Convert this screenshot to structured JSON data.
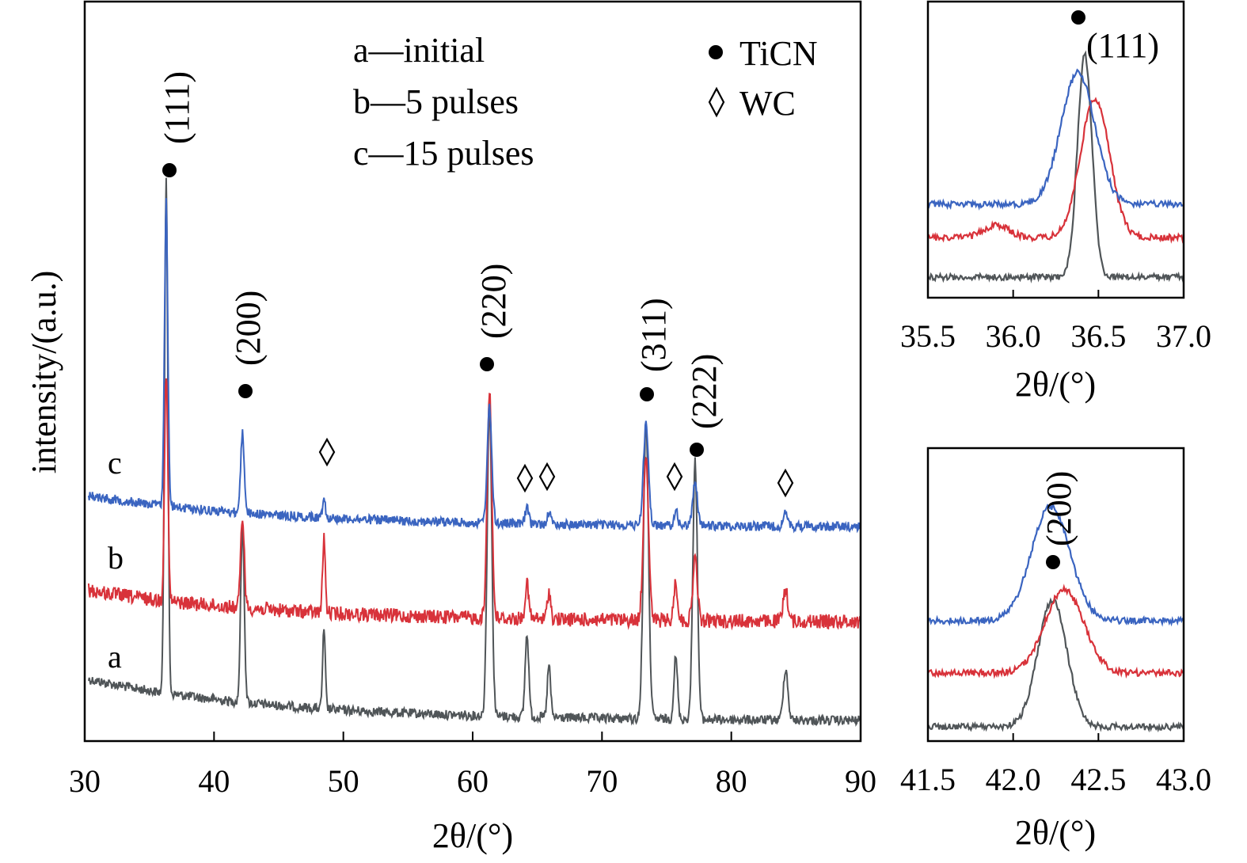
{
  "colors": {
    "a": "#505558",
    "b": "#d8323a",
    "c": "#3a64c0",
    "axis": "#000000"
  },
  "chart_data": [
    {
      "type": "line",
      "title": "",
      "xlabel": "2θ/(°)",
      "ylabel": "intensity/(a.u.)",
      "xlim": [
        30,
        90
      ],
      "xticks": [
        "30",
        "40",
        "50",
        "60",
        "70",
        "80",
        "90"
      ],
      "legend_text": [
        "a—initial",
        "b—5 pulses",
        "c—15 pulses"
      ],
      "marker_legend": [
        {
          "marker": "filled-circle",
          "label": "TiCN"
        },
        {
          "marker": "open-diamond",
          "label": "WC"
        }
      ],
      "series": [
        {
          "name": "a",
          "color_key": "a",
          "peaks": [
            {
              "x": 36.3,
              "h": 1.0
            },
            {
              "x": 42.2,
              "h": 0.34
            },
            {
              "x": 48.5,
              "h": 0.15
            },
            {
              "x": 61.3,
              "h": 0.6
            },
            {
              "x": 64.2,
              "h": 0.16
            },
            {
              "x": 65.9,
              "h": 0.1
            },
            {
              "x": 73.4,
              "h": 0.57
            },
            {
              "x": 75.7,
              "h": 0.12
            },
            {
              "x": 77.2,
              "h": 0.5
            },
            {
              "x": 84.2,
              "h": 0.1
            }
          ]
        },
        {
          "name": "b",
          "color_key": "b",
          "peaks": [
            {
              "x": 36.3,
              "h": 1.0
            },
            {
              "x": 42.2,
              "h": 0.4
            },
            {
              "x": 48.5,
              "h": 0.32
            },
            {
              "x": 61.3,
              "h": 1.0
            },
            {
              "x": 64.2,
              "h": 0.15
            },
            {
              "x": 65.9,
              "h": 0.12
            },
            {
              "x": 73.4,
              "h": 0.73
            },
            {
              "x": 75.7,
              "h": 0.17
            },
            {
              "x": 77.2,
              "h": 0.27
            },
            {
              "x": 84.2,
              "h": 0.14
            }
          ]
        },
        {
          "name": "c",
          "color_key": "c",
          "peaks": [
            {
              "x": 36.3,
              "h": 1.0
            },
            {
              "x": 42.2,
              "h": 0.26
            },
            {
              "x": 48.5,
              "h": 0.07
            },
            {
              "x": 61.3,
              "h": 0.38
            },
            {
              "x": 64.2,
              "h": 0.05
            },
            {
              "x": 65.9,
              "h": 0.04
            },
            {
              "x": 73.4,
              "h": 0.33
            },
            {
              "x": 75.7,
              "h": 0.05
            },
            {
              "x": 77.2,
              "h": 0.15
            },
            {
              "x": 84.2,
              "h": 0.04
            }
          ]
        }
      ],
      "annotations": [
        {
          "label": "(111)",
          "x": 36.3,
          "phase": "TiCN"
        },
        {
          "label": "(200)",
          "x": 42.2,
          "phase": "TiCN"
        },
        {
          "label": "",
          "x": 48.5,
          "phase": "WC"
        },
        {
          "label": "(220)",
          "x": 61.3,
          "phase": "TiCN"
        },
        {
          "label": "",
          "x": 64.2,
          "phase": "WC"
        },
        {
          "label": "",
          "x": 65.9,
          "phase": "WC"
        },
        {
          "label": "(311)",
          "x": 73.4,
          "phase": "TiCN"
        },
        {
          "label": "",
          "x": 75.7,
          "phase": "WC"
        },
        {
          "label": "(222)",
          "x": 77.2,
          "phase": "TiCN"
        },
        {
          "label": "",
          "x": 84.2,
          "phase": "WC"
        }
      ]
    },
    {
      "type": "line",
      "title": "",
      "xlabel": "2θ/(°)",
      "xlim": [
        35.5,
        37.0
      ],
      "xticks": [
        "35.5",
        "36.0",
        "36.5",
        "37.0"
      ],
      "peak_label": "(111)",
      "peak_x": 36.42,
      "series": [
        {
          "name": "a",
          "color_key": "a",
          "peak_x": 36.42,
          "height": 0.88
        },
        {
          "name": "b",
          "color_key": "b",
          "peak_x": 36.48,
          "height": 0.55
        },
        {
          "name": "c",
          "color_key": "c",
          "peak_x": 36.38,
          "height": 0.52
        }
      ]
    },
    {
      "type": "line",
      "title": "",
      "xlabel": "2θ/(°)",
      "xlim": [
        41.5,
        43.0
      ],
      "xticks": [
        "41.5",
        "42.0",
        "42.5",
        "43.0"
      ],
      "peak_label": "(200)",
      "peak_x": 42.23,
      "series": [
        {
          "name": "a",
          "color_key": "a",
          "peak_x": 42.23,
          "height": 0.5
        },
        {
          "name": "b",
          "color_key": "b",
          "peak_x": 42.3,
          "height": 0.33
        },
        {
          "name": "c",
          "color_key": "c",
          "peak_x": 42.22,
          "height": 0.45
        }
      ]
    }
  ]
}
